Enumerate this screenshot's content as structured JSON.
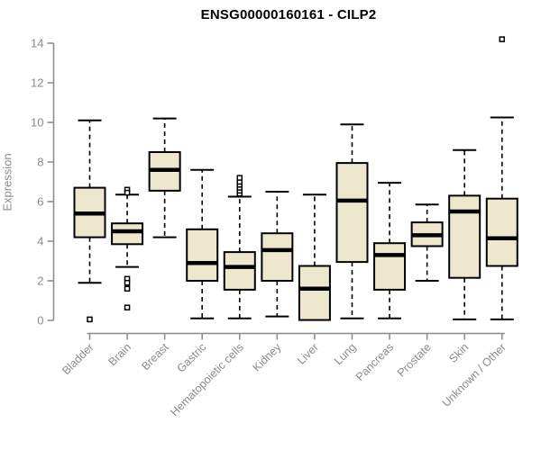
{
  "title": "ENSG00000160161 - CILP2",
  "y_axis_label": "Expression",
  "colors": {
    "box_fill": "#EDE8CD",
    "box_border": "#000000",
    "median": "#000000",
    "whisker": "#000000",
    "outlier_stroke": "#000000",
    "axis": "#8a8a8a",
    "tick_label": "#8a8a8a",
    "title": "#000000"
  },
  "chart_data": {
    "type": "boxplot",
    "title": "ENSG00000160161 - CILP2",
    "xlabel": "",
    "ylabel": "Expression",
    "ylim": [
      0,
      14
    ],
    "yticks": [
      0,
      2,
      4,
      6,
      8,
      10,
      12,
      14
    ],
    "grid": false,
    "legend": "none",
    "categories": [
      "Bladder",
      "Brain",
      "Breast",
      "Gastric",
      "Hematopoietic cells",
      "Kidney",
      "Liver",
      "Lung",
      "Pancreas",
      "Prostate",
      "Skin",
      "Unknown / Other"
    ],
    "series": [
      {
        "label": "Bladder",
        "low": 1.9,
        "q1": 4.2,
        "median": 5.4,
        "q3": 6.7,
        "high": 10.1,
        "outliers": [
          0.05
        ]
      },
      {
        "label": "Brain",
        "low": 2.7,
        "q1": 3.85,
        "median": 4.5,
        "q3": 4.9,
        "high": 6.35,
        "outliers": [
          6.6,
          6.45,
          2.1,
          1.9,
          1.6,
          0.65
        ]
      },
      {
        "label": "Breast",
        "low": 4.2,
        "q1": 6.55,
        "median": 7.6,
        "q3": 8.5,
        "high": 10.2,
        "outliers": []
      },
      {
        "label": "Gastric",
        "low": 0.1,
        "q1": 2.0,
        "median": 2.9,
        "q3": 4.6,
        "high": 7.6,
        "outliers": []
      },
      {
        "label": "Hematopoietic cells",
        "low": 0.1,
        "q1": 1.55,
        "median": 2.7,
        "q3": 3.45,
        "high": 6.25,
        "outliers": [
          6.4,
          6.55,
          6.7,
          6.85,
          7.0,
          7.2
        ]
      },
      {
        "label": "Kidney",
        "low": 0.2,
        "q1": 2.0,
        "median": 3.55,
        "q3": 4.4,
        "high": 6.5,
        "outliers": []
      },
      {
        "label": "Liver",
        "low": 0.02,
        "q1": 0.02,
        "median": 1.6,
        "q3": 2.75,
        "high": 6.35,
        "outliers": []
      },
      {
        "label": "Lung",
        "low": 0.1,
        "q1": 2.95,
        "median": 6.05,
        "q3": 7.95,
        "high": 9.9,
        "outliers": []
      },
      {
        "label": "Pancreas",
        "low": 0.1,
        "q1": 1.55,
        "median": 3.3,
        "q3": 3.9,
        "high": 6.95,
        "outliers": []
      },
      {
        "label": "Prostate",
        "low": 2.0,
        "q1": 3.75,
        "median": 4.3,
        "q3": 4.95,
        "high": 5.85,
        "outliers": []
      },
      {
        "label": "Skin",
        "low": 0.05,
        "q1": 2.15,
        "median": 5.5,
        "q3": 6.3,
        "high": 8.6,
        "outliers": []
      },
      {
        "label": "Unknown / Other",
        "low": 0.05,
        "q1": 2.75,
        "median": 4.15,
        "q3": 6.15,
        "high": 10.25,
        "outliers": [
          14.2
        ]
      }
    ]
  }
}
